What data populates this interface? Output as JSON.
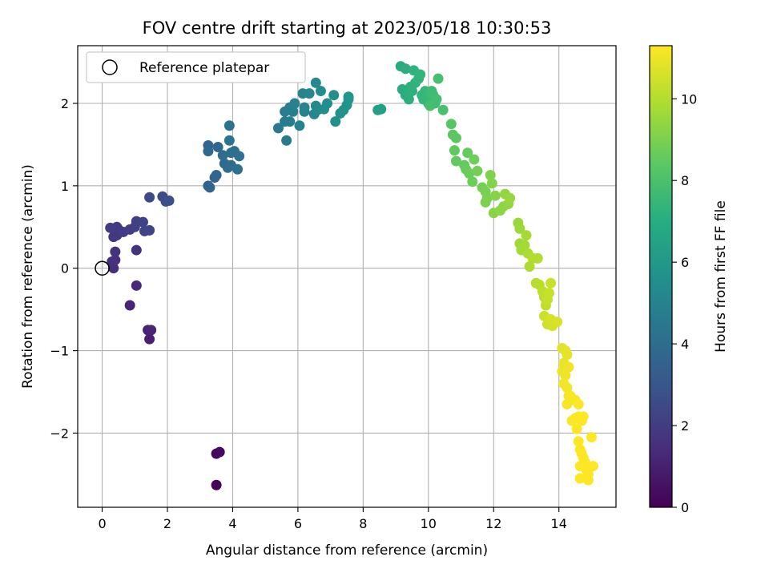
{
  "chart_data": {
    "type": "scatter",
    "title": "FOV centre drift starting at 2023/05/18 10:30:53",
    "xlabel": "Angular distance from reference (arcmin)",
    "ylabel": "Rotation from reference (arcmin)",
    "xlim": [
      -0.75,
      15.75
    ],
    "ylim": [
      -2.9,
      2.7
    ],
    "xticks": [
      0,
      2,
      4,
      6,
      8,
      10,
      12,
      14
    ],
    "xtick_labels": [
      "0",
      "2",
      "4",
      "6",
      "8",
      "10",
      "12",
      "14"
    ],
    "yticks": [
      -2,
      -1,
      0,
      1,
      2
    ],
    "ytick_labels": [
      "−2",
      "−1",
      "0",
      "1",
      "2"
    ],
    "grid": true,
    "legend": {
      "position": "top-left",
      "entries": [
        "Reference platepar"
      ]
    },
    "reference_point": {
      "x": 0,
      "y": 0
    },
    "colorbar": {
      "label": "Hours from first FF file",
      "range": [
        0,
        11.3
      ],
      "ticks": [
        0,
        2,
        4,
        6,
        8,
        10
      ],
      "tick_labels": [
        "0",
        "2",
        "4",
        "6",
        "8",
        "10"
      ],
      "colormap": "viridis"
    },
    "series": [
      {
        "points": [
          [
            3.5,
            -2.63,
            0.1
          ],
          [
            3.5,
            -2.25,
            0.2
          ],
          [
            3.6,
            -2.23,
            0.3
          ],
          [
            1.45,
            -0.86,
            1.0
          ],
          [
            1.4,
            -0.75,
            1.1
          ],
          [
            1.5,
            -0.75,
            1.15
          ],
          [
            0.85,
            -0.45,
            1.2
          ],
          [
            1.05,
            -0.21,
            1.3
          ],
          [
            0.35,
            0.0,
            1.5
          ],
          [
            0.3,
            0.08,
            1.55
          ],
          [
            0.4,
            0.1,
            1.6
          ],
          [
            0.4,
            0.2,
            1.65
          ],
          [
            1.05,
            0.22,
            1.7
          ],
          [
            0.35,
            0.38,
            1.8
          ],
          [
            0.45,
            0.4,
            1.85
          ],
          [
            0.5,
            0.47,
            1.9
          ],
          [
            0.45,
            0.5,
            1.95
          ],
          [
            0.25,
            0.49,
            2.0
          ],
          [
            0.65,
            0.44,
            2.05
          ],
          [
            0.85,
            0.47,
            2.1
          ],
          [
            1.0,
            0.5,
            2.15
          ],
          [
            1.05,
            0.57,
            2.2
          ],
          [
            1.25,
            0.56,
            2.25
          ],
          [
            1.3,
            0.45,
            2.3
          ],
          [
            1.45,
            0.46,
            2.35
          ],
          [
            1.45,
            0.86,
            2.5
          ],
          [
            1.85,
            0.87,
            2.6
          ],
          [
            1.95,
            0.81,
            2.7
          ],
          [
            2.05,
            0.82,
            2.8
          ],
          [
            3.25,
            1.0,
            3.5
          ],
          [
            3.3,
            0.98,
            3.55
          ],
          [
            3.45,
            1.1,
            3.6
          ],
          [
            3.5,
            1.13,
            3.65
          ],
          [
            3.25,
            1.49,
            3.7
          ],
          [
            3.25,
            1.42,
            3.75
          ],
          [
            3.55,
            1.47,
            3.8
          ],
          [
            3.75,
            1.27,
            3.85
          ],
          [
            3.85,
            1.22,
            3.9
          ],
          [
            3.95,
            1.25,
            3.95
          ],
          [
            3.7,
            1.37,
            4.0
          ],
          [
            3.95,
            1.4,
            4.05
          ],
          [
            4.05,
            1.42,
            4.1
          ],
          [
            4.15,
            1.2,
            4.15
          ],
          [
            4.2,
            1.36,
            4.2
          ],
          [
            3.9,
            1.55,
            4.25
          ],
          [
            3.9,
            1.73,
            4.3
          ],
          [
            5.4,
            1.7,
            4.6
          ],
          [
            5.65,
            1.55,
            4.65
          ],
          [
            5.6,
            1.78,
            4.7
          ],
          [
            5.75,
            1.78,
            4.75
          ],
          [
            5.6,
            1.9,
            4.8
          ],
          [
            5.75,
            1.95,
            4.85
          ],
          [
            5.85,
            1.9,
            4.9
          ],
          [
            5.9,
            2.0,
            4.95
          ],
          [
            6.05,
            1.73,
            5.0
          ],
          [
            6.2,
            1.9,
            5.05
          ],
          [
            6.2,
            1.95,
            5.1
          ],
          [
            6.15,
            2.12,
            5.15
          ],
          [
            6.35,
            2.12,
            5.2
          ],
          [
            6.5,
            1.87,
            5.25
          ],
          [
            6.55,
            1.97,
            5.3
          ],
          [
            6.6,
            1.92,
            5.35
          ],
          [
            6.55,
            2.25,
            5.4
          ],
          [
            6.7,
            2.15,
            5.45
          ],
          [
            6.8,
            1.93,
            5.5
          ],
          [
            6.9,
            2.0,
            5.55
          ],
          [
            7.1,
            2.1,
            5.6
          ],
          [
            7.15,
            1.78,
            5.65
          ],
          [
            7.3,
            1.88,
            5.7
          ],
          [
            7.4,
            1.92,
            5.75
          ],
          [
            7.5,
            1.98,
            5.8
          ],
          [
            7.55,
            2.05,
            5.85
          ],
          [
            7.55,
            2.08,
            5.9
          ],
          [
            8.45,
            1.92,
            6.4
          ],
          [
            8.55,
            1.93,
            6.45
          ],
          [
            9.15,
            2.45,
            6.9
          ],
          [
            9.2,
            2.17,
            6.95
          ],
          [
            9.3,
            2.42,
            7.0
          ],
          [
            9.3,
            2.1,
            7.05
          ],
          [
            9.4,
            2.05,
            7.1
          ],
          [
            9.45,
            2.2,
            7.15
          ],
          [
            9.5,
            2.15,
            7.2
          ],
          [
            9.55,
            2.4,
            7.25
          ],
          [
            9.6,
            2.25,
            7.3
          ],
          [
            9.7,
            2.3,
            7.35
          ],
          [
            9.75,
            2.35,
            7.4
          ],
          [
            9.8,
            2.1,
            7.45
          ],
          [
            9.85,
            2.05,
            7.5
          ],
          [
            9.9,
            2.15,
            7.55
          ],
          [
            10.0,
            2.0,
            7.6
          ],
          [
            10.05,
            2.12,
            7.65
          ],
          [
            10.1,
            2.15,
            7.7
          ],
          [
            10.15,
            2.1,
            7.75
          ],
          [
            10.2,
            2.0,
            7.8
          ],
          [
            10.25,
            2.05,
            7.85
          ],
          [
            10.05,
            1.97,
            7.9
          ],
          [
            10.3,
            2.3,
            7.95
          ],
          [
            10.45,
            1.92,
            8.0
          ],
          [
            10.7,
            1.75,
            8.3
          ],
          [
            10.75,
            1.62,
            8.35
          ],
          [
            10.85,
            1.58,
            8.4
          ],
          [
            10.8,
            1.43,
            8.45
          ],
          [
            10.85,
            1.3,
            8.5
          ],
          [
            11.1,
            1.25,
            8.55
          ],
          [
            11.2,
            1.4,
            8.6
          ],
          [
            11.15,
            1.2,
            8.65
          ],
          [
            11.25,
            1.15,
            8.7
          ],
          [
            11.35,
            1.05,
            8.75
          ],
          [
            11.4,
            1.32,
            8.8
          ],
          [
            11.5,
            1.18,
            8.85
          ],
          [
            11.65,
            0.98,
            8.9
          ],
          [
            11.75,
            0.93,
            8.95
          ],
          [
            11.8,
            0.85,
            9.0
          ],
          [
            11.75,
            0.8,
            9.05
          ],
          [
            11.9,
            1.13,
            9.1
          ],
          [
            11.95,
            1.03,
            9.15
          ],
          [
            12.05,
            0.88,
            9.2
          ],
          [
            12.0,
            0.67,
            9.25
          ],
          [
            12.2,
            0.7,
            9.3
          ],
          [
            12.3,
            0.75,
            9.35
          ],
          [
            12.35,
            0.9,
            9.4
          ],
          [
            12.45,
            0.78,
            9.45
          ],
          [
            12.5,
            0.85,
            9.5
          ],
          [
            12.75,
            0.55,
            9.55
          ],
          [
            12.8,
            0.48,
            9.6
          ],
          [
            12.8,
            0.3,
            9.65
          ],
          [
            12.85,
            0.22,
            9.7
          ],
          [
            12.95,
            0.28,
            9.75
          ],
          [
            13.0,
            0.4,
            9.8
          ],
          [
            13.05,
            0.18,
            9.85
          ],
          [
            13.1,
            0.02,
            9.9
          ],
          [
            13.2,
            0.12,
            9.95
          ],
          [
            13.35,
            0.12,
            10.0
          ],
          [
            13.3,
            -0.18,
            10.05
          ],
          [
            13.4,
            -0.2,
            10.1
          ],
          [
            13.5,
            -0.28,
            10.15
          ],
          [
            13.55,
            -0.35,
            10.2
          ],
          [
            13.6,
            -0.45,
            10.25
          ],
          [
            13.65,
            -0.38,
            10.3
          ],
          [
            13.7,
            -0.3,
            10.35
          ],
          [
            13.75,
            -0.18,
            10.4
          ],
          [
            13.55,
            -0.58,
            10.45
          ],
          [
            13.65,
            -0.68,
            10.5
          ],
          [
            13.8,
            -0.7,
            10.55
          ],
          [
            13.75,
            -0.62,
            10.6
          ],
          [
            13.95,
            -0.65,
            10.65
          ],
          [
            14.1,
            -0.97,
            10.8
          ],
          [
            14.2,
            -1.0,
            10.85
          ],
          [
            14.25,
            -1.05,
            10.9
          ],
          [
            14.15,
            -1.15,
            10.95
          ],
          [
            14.1,
            -1.25,
            11.0
          ],
          [
            14.2,
            -1.3,
            11.05
          ],
          [
            14.3,
            -1.2,
            11.05
          ],
          [
            14.15,
            -1.4,
            11.1
          ],
          [
            14.25,
            -1.45,
            11.1
          ],
          [
            14.3,
            -1.55,
            11.15
          ],
          [
            14.35,
            -1.6,
            11.15
          ],
          [
            14.25,
            -1.65,
            11.2
          ],
          [
            14.35,
            -1.55,
            11.2
          ],
          [
            14.5,
            -1.6,
            11.2
          ],
          [
            14.6,
            -1.65,
            11.25
          ],
          [
            14.4,
            -1.85,
            11.25
          ],
          [
            14.5,
            -1.82,
            11.25
          ],
          [
            14.6,
            -1.8,
            11.25
          ],
          [
            14.7,
            -1.85,
            11.3
          ],
          [
            14.75,
            -1.8,
            11.3
          ],
          [
            14.55,
            -1.95,
            11.3
          ],
          [
            14.6,
            -2.1,
            11.3
          ],
          [
            14.65,
            -2.2,
            11.3
          ],
          [
            14.7,
            -2.25,
            11.3
          ],
          [
            14.75,
            -2.3,
            11.3
          ],
          [
            14.65,
            -2.4,
            11.3
          ],
          [
            14.8,
            -2.35,
            11.3
          ],
          [
            14.85,
            -2.45,
            11.3
          ],
          [
            14.9,
            -2.5,
            11.3
          ],
          [
            15.05,
            -2.4,
            11.3
          ],
          [
            14.65,
            -2.55,
            11.3
          ],
          [
            14.9,
            -2.57,
            11.3
          ],
          [
            15.0,
            -2.05,
            11.3
          ]
        ]
      }
    ]
  }
}
